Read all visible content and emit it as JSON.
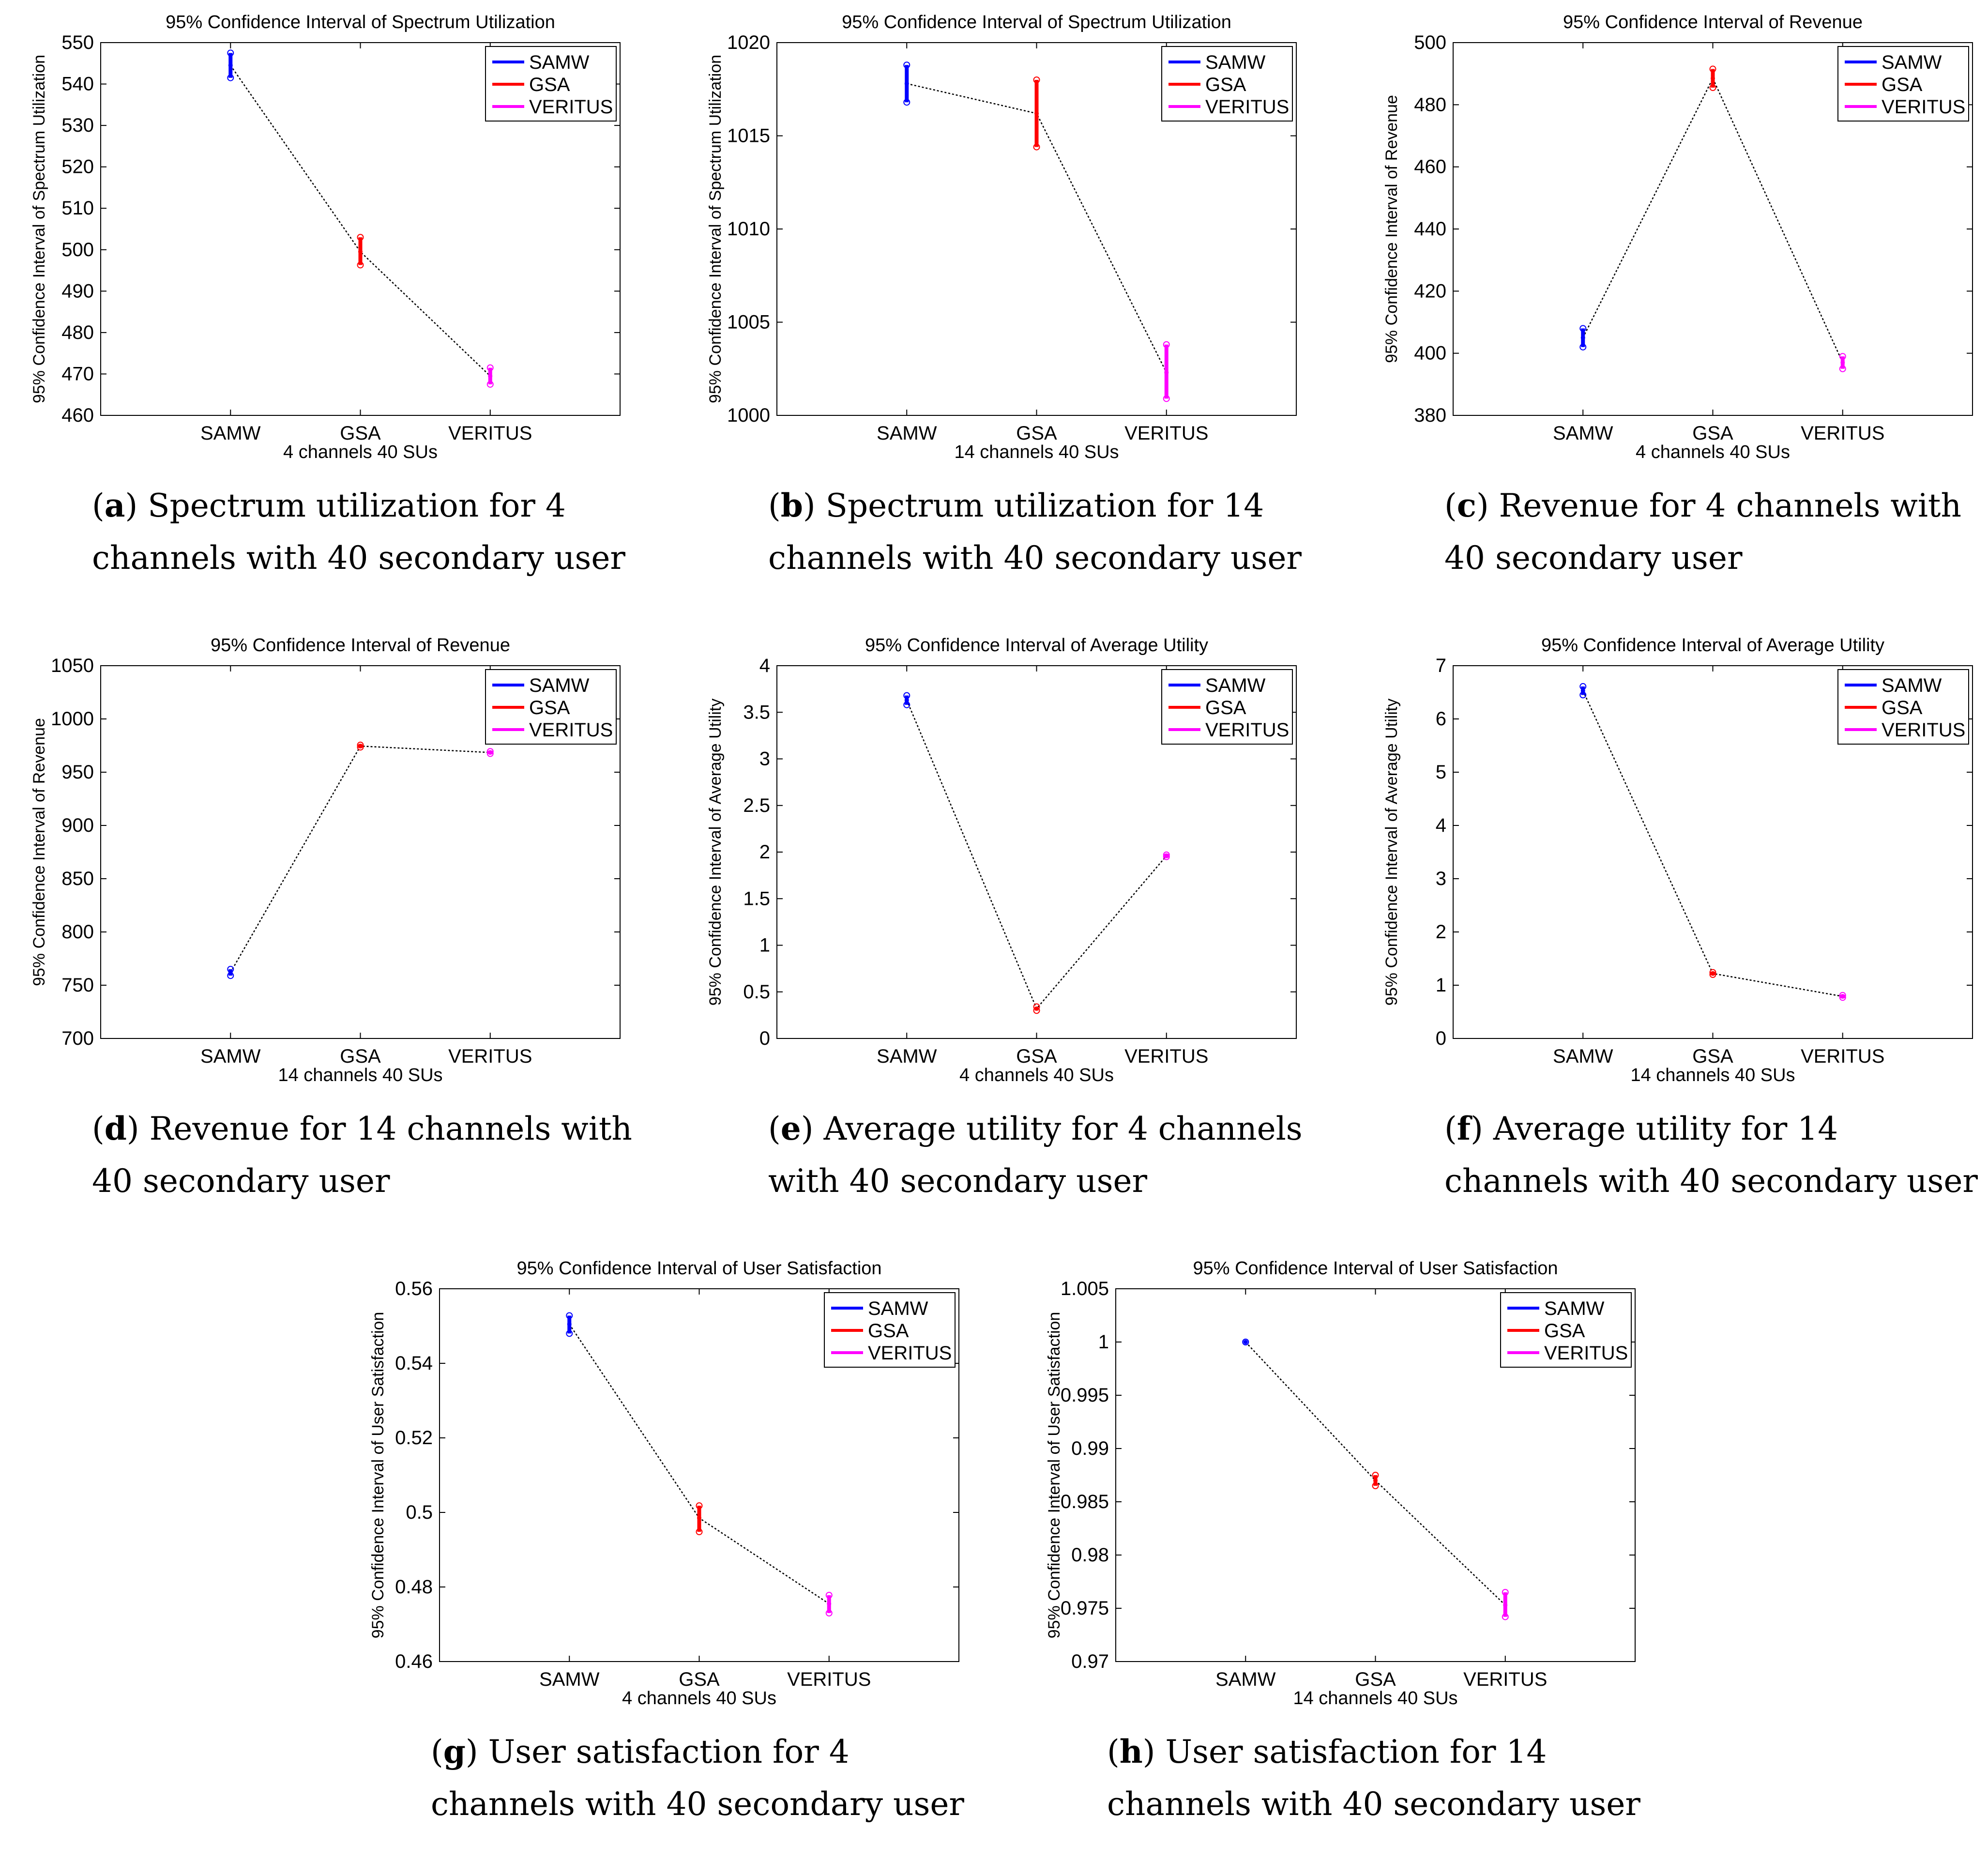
{
  "colors": {
    "SAMW": "#0000ff",
    "GSA": "#ff0000",
    "VERITUS": "#ff00ff",
    "connector": "#000000"
  },
  "chart_data": [
    {
      "id": "a",
      "type": "errorbar",
      "title": "95% Confidence Interval of Spectrum Utilization",
      "ylabel": "95% Confidence Interval of Spectrum Utilization",
      "xlabel": "4 channels 40 SUs",
      "categories": [
        "SAMW",
        "GSA",
        "VERITUS"
      ],
      "legend": [
        "SAMW",
        "GSA",
        "VERITUS"
      ],
      "ylim": [
        460,
        550
      ],
      "yticks": [
        "460",
        "470",
        "480",
        "490",
        "500",
        "510",
        "520",
        "530",
        "540",
        "550"
      ],
      "series": [
        {
          "name": "SAMW",
          "mean": 544.5,
          "low": 541.5,
          "high": 547.5
        },
        {
          "name": "GSA",
          "mean": 499.5,
          "low": 496.3,
          "high": 503
        },
        {
          "name": "VERITUS",
          "mean": 469.5,
          "low": 467.5,
          "high": 471.5
        }
      ],
      "caption": {
        "label": "a",
        "text": "Spectrum utilization for 4 channels with 40 secondary user"
      }
    },
    {
      "id": "b",
      "type": "errorbar",
      "title": "95% Confidence Interval of Spectrum Utilization",
      "ylabel": "95% Confidence Interval of Spectrum Utilization",
      "xlabel": "14 channels 40 SUs",
      "categories": [
        "SAMW",
        "GSA",
        "VERITUS"
      ],
      "legend": [
        "SAMW",
        "GSA",
        "VERITUS"
      ],
      "ylim": [
        1000,
        1020
      ],
      "yticks": [
        "1000",
        "1005",
        "1010",
        "1015",
        "1020"
      ],
      "series": [
        {
          "name": "SAMW",
          "mean": 1017.8,
          "low": 1016.8,
          "high": 1018.8
        },
        {
          "name": "GSA",
          "mean": 1016.2,
          "low": 1014.4,
          "high": 1018
        },
        {
          "name": "VERITUS",
          "mean": 1002.3,
          "low": 1000.9,
          "high": 1003.8
        }
      ],
      "caption": {
        "label": "b",
        "text": "Spectrum utilization for 14 channels with 40 secondary user"
      }
    },
    {
      "id": "c",
      "type": "errorbar",
      "title": "95% Confidence Interval of Revenue",
      "ylabel": "95% Confidence Interval of Revenue",
      "xlabel": "4 channels 40 SUs",
      "categories": [
        "SAMW",
        "GSA",
        "VERITUS"
      ],
      "legend": [
        "SAMW",
        "GSA",
        "VERITUS"
      ],
      "ylim": [
        380,
        500
      ],
      "yticks": [
        "380",
        "400",
        "420",
        "440",
        "460",
        "480",
        "500"
      ],
      "series": [
        {
          "name": "SAMW",
          "mean": 405,
          "low": 402,
          "high": 408
        },
        {
          "name": "GSA",
          "mean": 488.5,
          "low": 485.5,
          "high": 491.5
        },
        {
          "name": "VERITUS",
          "mean": 397,
          "low": 395,
          "high": 399
        }
      ],
      "caption": {
        "label": "c",
        "text": "Revenue for 4 channels with 40 secondary user"
      }
    },
    {
      "id": "d",
      "type": "errorbar",
      "title": "95% Confidence Interval of Revenue",
      "ylabel": "95% Confidence Interval of Revenue",
      "xlabel": "14 channels 40 SUs",
      "categories": [
        "SAMW",
        "GSA",
        "VERITUS"
      ],
      "legend": [
        "SAMW",
        "GSA",
        "VERITUS"
      ],
      "ylim": [
        700,
        1050
      ],
      "yticks": [
        "700",
        "750",
        "800",
        "850",
        "900",
        "950",
        "1000",
        "1050"
      ],
      "series": [
        {
          "name": "SAMW",
          "mean": 762,
          "low": 759,
          "high": 765
        },
        {
          "name": "GSA",
          "mean": 974.5,
          "low": 973.5,
          "high": 975.5
        },
        {
          "name": "VERITUS",
          "mean": 968.5,
          "low": 967.5,
          "high": 969.5
        }
      ],
      "caption": {
        "label": "d",
        "text": "Revenue for 14 channels with 40 secondary user"
      }
    },
    {
      "id": "e",
      "type": "errorbar",
      "title": "95% Confidence Interval of Average Utility",
      "ylabel": "95% Confidence Interval of Average Utility",
      "xlabel": "4 channels 40 SUs",
      "categories": [
        "SAMW",
        "GSA",
        "VERITUS"
      ],
      "legend": [
        "SAMW",
        "GSA",
        "VERITUS"
      ],
      "ylim": [
        0,
        4
      ],
      "yticks": [
        "0",
        "0.5",
        "1",
        "1.5",
        "2",
        "2.5",
        "3",
        "3.5",
        "4"
      ],
      "series": [
        {
          "name": "SAMW",
          "mean": 3.63,
          "low": 3.58,
          "high": 3.68
        },
        {
          "name": "GSA",
          "mean": 0.32,
          "low": 0.3,
          "high": 0.34
        },
        {
          "name": "VERITUS",
          "mean": 1.96,
          "low": 1.95,
          "high": 1.97
        }
      ],
      "caption": {
        "label": "e",
        "text": "Average utility for 4 channels with 40 secondary user"
      }
    },
    {
      "id": "f",
      "type": "errorbar",
      "title": "95% Confidence Interval of Average Utility",
      "ylabel": "95% Confidence Interval of Average Utility",
      "xlabel": "14 channels 40 SUs",
      "categories": [
        "SAMW",
        "GSA",
        "VERITUS"
      ],
      "legend": [
        "SAMW",
        "GSA",
        "VERITUS"
      ],
      "ylim": [
        0,
        7
      ],
      "yticks": [
        "0",
        "1",
        "2",
        "3",
        "4",
        "5",
        "6",
        "7"
      ],
      "series": [
        {
          "name": "SAMW",
          "mean": 6.53,
          "low": 6.45,
          "high": 6.61
        },
        {
          "name": "GSA",
          "mean": 1.22,
          "low": 1.2,
          "high": 1.24
        },
        {
          "name": "VERITUS",
          "mean": 0.79,
          "low": 0.77,
          "high": 0.81
        }
      ],
      "caption": {
        "label": "f",
        "text": "Average utility for 14 channels with 40 secondary user"
      }
    },
    {
      "id": "g",
      "type": "errorbar",
      "title": "95% Confidence Interval of User Satisfaction",
      "ylabel": "95% Confidence Interval of User Satisfaction",
      "xlabel": "4 channels 40 SUs",
      "categories": [
        "SAMW",
        "GSA",
        "VERITUS"
      ],
      "legend": [
        "SAMW",
        "GSA",
        "VERITUS"
      ],
      "ylim": [
        0.46,
        0.56
      ],
      "yticks": [
        "0.46",
        "0.48",
        "0.5",
        "0.52",
        "0.54",
        "0.56"
      ],
      "series": [
        {
          "name": "SAMW",
          "mean": 0.5505,
          "low": 0.548,
          "high": 0.5528
        },
        {
          "name": "GSA",
          "mean": 0.4985,
          "low": 0.4948,
          "high": 0.5018
        },
        {
          "name": "VERITUS",
          "mean": 0.4755,
          "low": 0.473,
          "high": 0.4778
        }
      ],
      "caption": {
        "label": "g",
        "text": "User satisfaction for 4 channels with 40 secondary user"
      }
    },
    {
      "id": "h",
      "type": "errorbar",
      "title": "95% Confidence Interval of User Satisfaction",
      "ylabel": "95% Confidence Interval of User Satisfaction",
      "xlabel": "14 channels 40 SUs",
      "categories": [
        "SAMW",
        "GSA",
        "VERITUS"
      ],
      "legend": [
        "SAMW",
        "GSA",
        "VERITUS"
      ],
      "ylim": [
        0.97,
        1.005
      ],
      "yticks": [
        "0.97",
        "0.975",
        "0.98",
        "0.985",
        "0.99",
        "0.995",
        "1",
        "1.005"
      ],
      "series": [
        {
          "name": "SAMW",
          "mean": 1.0,
          "low": 1.0,
          "high": 1.0
        },
        {
          "name": "GSA",
          "mean": 0.987,
          "low": 0.9865,
          "high": 0.9875
        },
        {
          "name": "VERITUS",
          "mean": 0.9753,
          "low": 0.9742,
          "high": 0.9765
        }
      ],
      "caption": {
        "label": "h",
        "text": "User satisfaction for 14 channels with 40 secondary user"
      }
    }
  ]
}
